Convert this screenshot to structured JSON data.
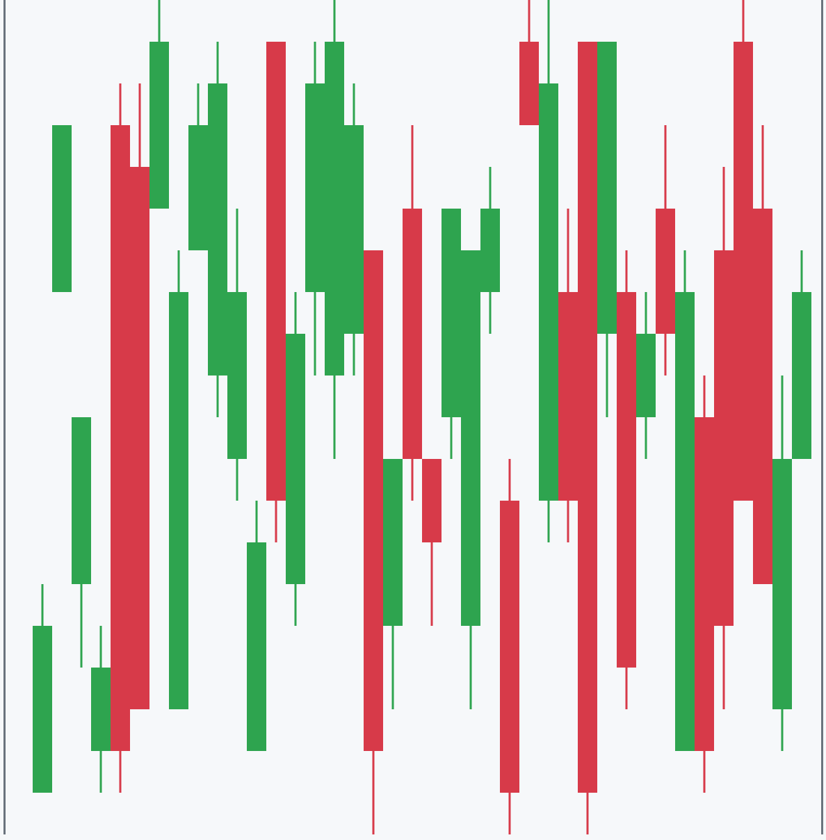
{
  "chart_data": {
    "type": "candlestick",
    "up_color": "#2ea44f",
    "down_color": "#d73a49",
    "ylim": [
      0,
      20
    ],
    "open": [
      1,
      13,
      6,
      2,
      17,
      16,
      15,
      3,
      14,
      11,
      9,
      2,
      19,
      6,
      13,
      11,
      12,
      14,
      5,
      15,
      9,
      10,
      5,
      13,
      8,
      19,
      8,
      13,
      19,
      12,
      13,
      10,
      15,
      2,
      10,
      14,
      19,
      15,
      3,
      9
    ],
    "high": [
      6,
      17,
      10,
      5,
      18,
      18,
      20,
      14,
      18,
      19,
      15,
      8,
      19,
      13,
      19,
      20,
      18,
      14,
      9,
      17,
      9,
      15,
      14,
      16,
      9,
      20,
      20,
      15,
      19,
      19,
      14,
      13,
      17,
      14,
      11,
      16,
      20,
      17,
      11,
      14
    ],
    "low": [
      1,
      13,
      4,
      1,
      1,
      3,
      15,
      3,
      14,
      10,
      8,
      2,
      7,
      5,
      11,
      9,
      11,
      0,
      3,
      8,
      5,
      9,
      3,
      12,
      0,
      17,
      7,
      7,
      0,
      10,
      3,
      9,
      11,
      2,
      1,
      3,
      8,
      6,
      2,
      9
    ],
    "close": [
      5,
      17,
      10,
      4,
      2,
      3,
      19,
      13,
      17,
      18,
      13,
      7,
      8,
      12,
      18,
      19,
      17,
      2,
      9,
      9,
      7,
      15,
      14,
      15,
      1,
      17,
      18,
      8,
      1,
      19,
      4,
      12,
      12,
      13,
      2,
      5,
      8,
      6,
      9,
      13
    ]
  }
}
